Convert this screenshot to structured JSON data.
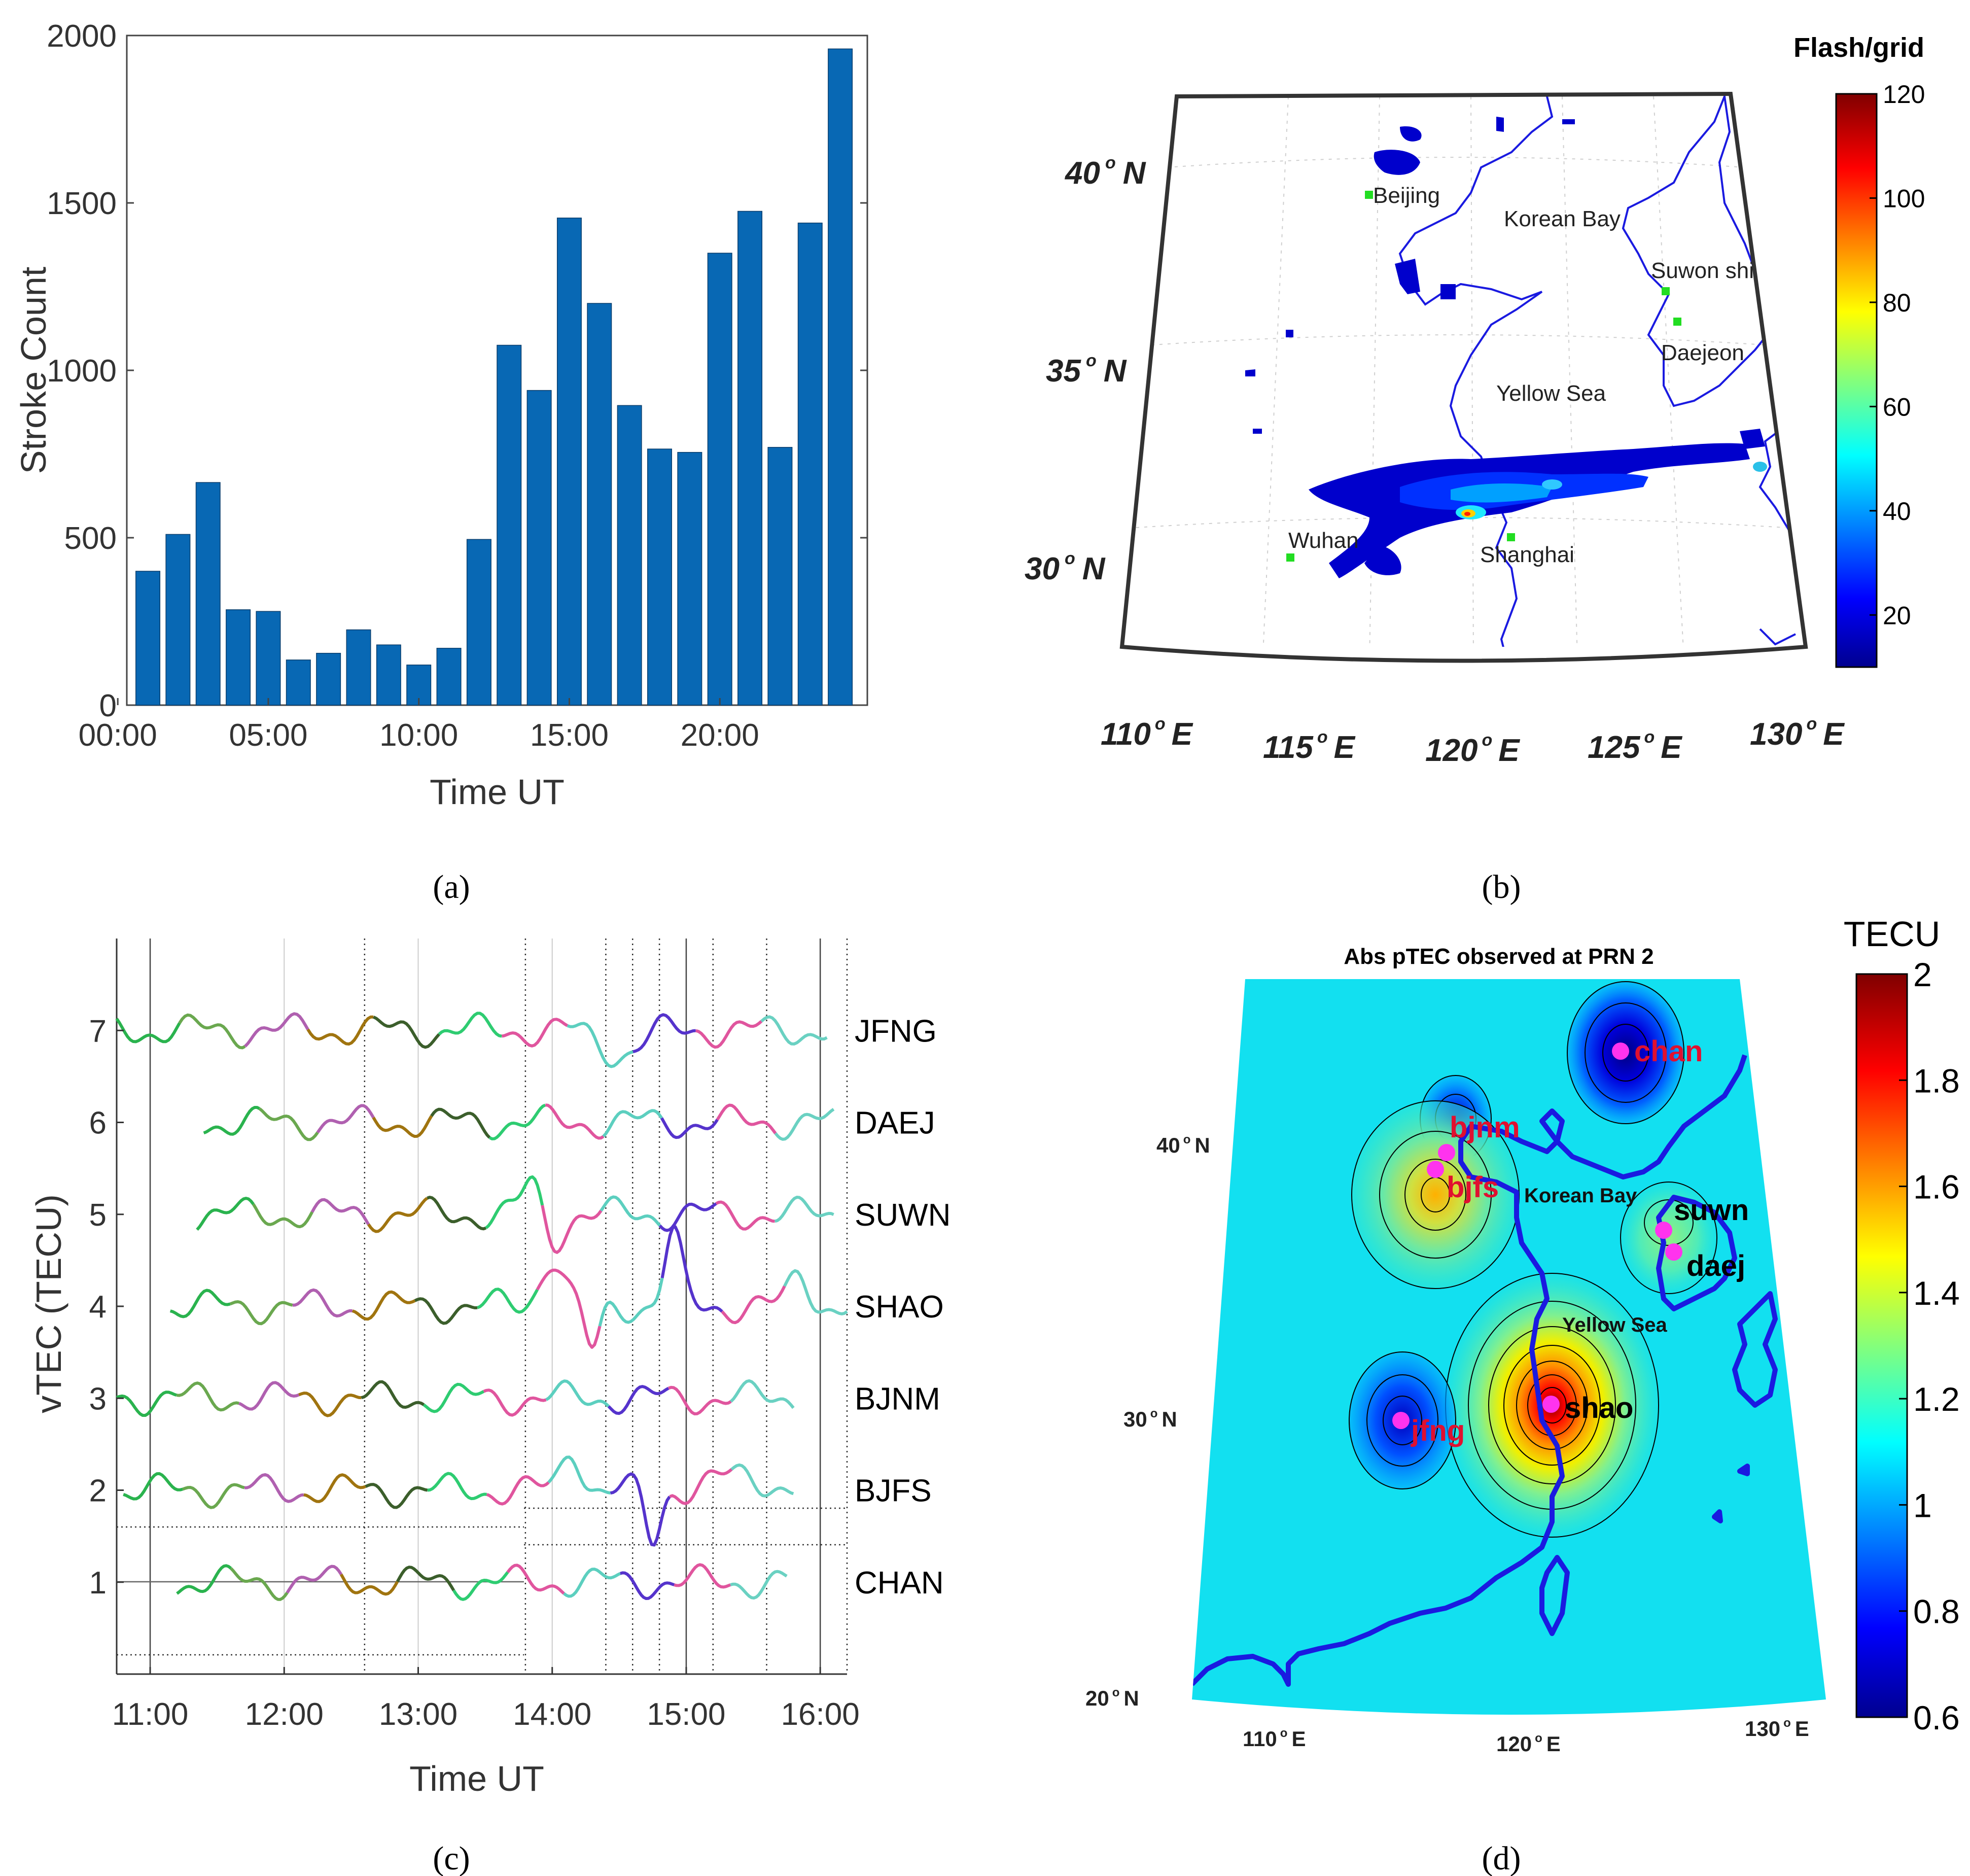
{
  "panels": {
    "a": "(a)",
    "b": "(b)",
    "c": "(c)",
    "d": "(d)"
  },
  "chart_data": [
    {
      "type": "bar",
      "title": "",
      "xlabel": "Time UT",
      "ylabel": "Stroke Count",
      "ylim": [
        0,
        2000
      ],
      "yticks": [
        "0",
        "500",
        "1000",
        "1500",
        "2000"
      ],
      "xticks": [
        "00:00",
        "05:00",
        "10:00",
        "15:00",
        "20:00"
      ],
      "xtick_hours": [
        0,
        5,
        10,
        15,
        20
      ],
      "categories": [
        1,
        2,
        3,
        4,
        5,
        6,
        7,
        8,
        9,
        10,
        11,
        12,
        13,
        14,
        15,
        16,
        17,
        18,
        19,
        20,
        21,
        22,
        23,
        24
      ],
      "values": [
        400,
        510,
        665,
        285,
        280,
        135,
        155,
        225,
        180,
        120,
        170,
        495,
        1075,
        940,
        1455,
        1200,
        895,
        765,
        755,
        1350,
        1475,
        770,
        1440,
        1960
      ],
      "color": "#0868B4"
    },
    {
      "type": "heatmap",
      "title": "Flash/grid",
      "colorbar_ticks": [
        "20",
        "40",
        "60",
        "80",
        "100",
        "120"
      ],
      "colorbar_range": [
        10,
        120
      ],
      "lat_labels": [
        "40",
        "35",
        "30"
      ],
      "lat_suffix": "N",
      "lon_labels": [
        "110",
        "115",
        "120",
        "125",
        "130"
      ],
      "lon_suffix": "E",
      "places": [
        "Beijing",
        "Korean Bay",
        "Suwon shi",
        "Daejeon",
        "Yellow Sea",
        "Wuhan",
        "Shanghai"
      ],
      "coast_color": "#1010e0",
      "marker_color": "#22dd22"
    },
    {
      "type": "line",
      "xlabel": "Time UT",
      "ylabel": "vTEC (TECU)",
      "xlim": [
        10.75,
        16.2
      ],
      "ylim": [
        0,
        8
      ],
      "xticks": [
        "11:00",
        "12:00",
        "13:00",
        "14:00",
        "15:00",
        "16:00"
      ],
      "xtick_hours": [
        11,
        12,
        13,
        14,
        15,
        16
      ],
      "yticks": [
        "1",
        "2",
        "3",
        "4",
        "5",
        "6",
        "7"
      ],
      "stations": [
        {
          "name": "JFNG",
          "offset": 7,
          "start": 10.75,
          "end": 16.05,
          "color": "#000000"
        },
        {
          "name": "DAEJ",
          "offset": 6,
          "start": 11.4,
          "end": 16.1,
          "color": "#000000"
        },
        {
          "name": "SUWN",
          "offset": 5,
          "start": 11.35,
          "end": 16.1,
          "color": "#000000"
        },
        {
          "name": "SHAO",
          "offset": 4,
          "start": 11.15,
          "end": 16.2,
          "color": "#e0102a"
        },
        {
          "name": "BJNM",
          "offset": 3,
          "start": 10.75,
          "end": 15.8,
          "color": "#000000"
        },
        {
          "name": "BJFS",
          "offset": 2,
          "start": 10.8,
          "end": 15.8,
          "color": "#000000"
        },
        {
          "name": "CHAN",
          "offset": 1,
          "start": 11.2,
          "end": 15.75,
          "color": "#000000"
        }
      ],
      "segment_colors": [
        "#2ab34e",
        "#6aa84f",
        "#b060b0",
        "#a0740f",
        "#3b5e2b",
        "#2ecc71",
        "#e0559e",
        "#5ccfbf",
        "#5533cc",
        "#e0559e",
        "#6ad1c2"
      ],
      "solid_vlines": [
        11.0,
        15.0,
        16.0
      ],
      "dotted_vlines": [
        12.6,
        13.8,
        14.4,
        14.6,
        14.8,
        15.2,
        15.6,
        16.2
      ],
      "grid_vlines": [
        12.0,
        13.0,
        14.0
      ]
    },
    {
      "type": "heatmap",
      "title": "Abs pTEC observed at PRN 2",
      "colorbar_label": "TECU",
      "colorbar_ticks": [
        "0.6",
        "0.8",
        "1",
        "1.2",
        "1.4",
        "1.6",
        "1.8",
        "2"
      ],
      "colorbar_range": [
        0.6,
        2.0
      ],
      "background_value": 1.1,
      "lat_labels": [
        "40",
        "30",
        "20"
      ],
      "lat_suffix": "N",
      "lon_labels": [
        "110",
        "120",
        "130"
      ],
      "lon_suffix": "E",
      "places": [
        "Korean Bay",
        "Yellow Sea"
      ],
      "stations": [
        {
          "name": "chan",
          "color": "#e01030"
        },
        {
          "name": "bjnm",
          "color": "#e01030"
        },
        {
          "name": "bjfs",
          "color": "#e01030"
        },
        {
          "name": "suwn",
          "color": "#000000"
        },
        {
          "name": "daej",
          "color": "#000000"
        },
        {
          "name": "shao",
          "color": "#000000"
        },
        {
          "name": "jfng",
          "color": "#e01030"
        }
      ],
      "blobs": [
        {
          "site": "chan",
          "peak": 0.6
        },
        {
          "site": "bjnm",
          "peak": 0.8
        },
        {
          "site": "bjfs",
          "peak": 1.5
        },
        {
          "site": "suwn",
          "peak": 1.3
        },
        {
          "site": "shao",
          "peak": 2.0
        },
        {
          "site": "jfng",
          "peak": 0.7
        }
      ],
      "marker_color": "#ff33ee",
      "coast_color": "#1a1ae0"
    }
  ]
}
